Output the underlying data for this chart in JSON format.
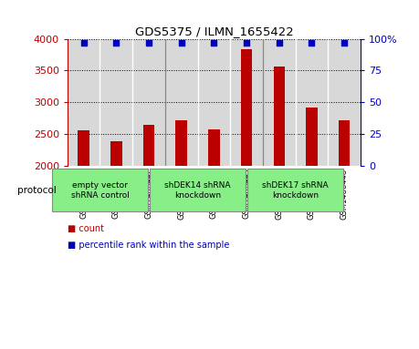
{
  "title": "GDS5375 / ILMN_1655422",
  "samples": [
    "GSM1486440",
    "GSM1486441",
    "GSM1486442",
    "GSM1486443",
    "GSM1486444",
    "GSM1486445",
    "GSM1486446",
    "GSM1486447",
    "GSM1486448"
  ],
  "counts": [
    2560,
    2390,
    2640,
    2720,
    2570,
    3830,
    3560,
    2910,
    2710
  ],
  "percentiles": [
    97,
    97,
    97,
    97,
    97,
    97,
    97,
    97,
    97
  ],
  "ylim_left": [
    2000,
    4000
  ],
  "ylim_right": [
    0,
    100
  ],
  "yticks_left": [
    2000,
    2500,
    3000,
    3500,
    4000
  ],
  "yticks_right": [
    0,
    25,
    50,
    75,
    100
  ],
  "right_tick_labels": [
    "0",
    "25",
    "50",
    "75",
    "100%"
  ],
  "bar_color": "#bb0000",
  "dot_color": "#0000bb",
  "protocol_groups": [
    {
      "label": "empty vector\nshRNA control",
      "indices": [
        0,
        1,
        2
      ],
      "color": "#88ee88"
    },
    {
      "label": "shDEK14 shRNA\nknockdown",
      "indices": [
        3,
        4,
        5
      ],
      "color": "#88ee88"
    },
    {
      "label": "shDEK17 shRNA\nknockdown",
      "indices": [
        6,
        7,
        8
      ],
      "color": "#88ee88"
    }
  ],
  "legend_count_label": "count",
  "legend_pct_label": "percentile rank within the sample",
  "protocol_label": "protocol",
  "background_color": "#ffffff",
  "bar_width": 0.35,
  "group_separators": [
    2.5,
    5.5
  ],
  "col_bg_color": "#d8d8d8"
}
